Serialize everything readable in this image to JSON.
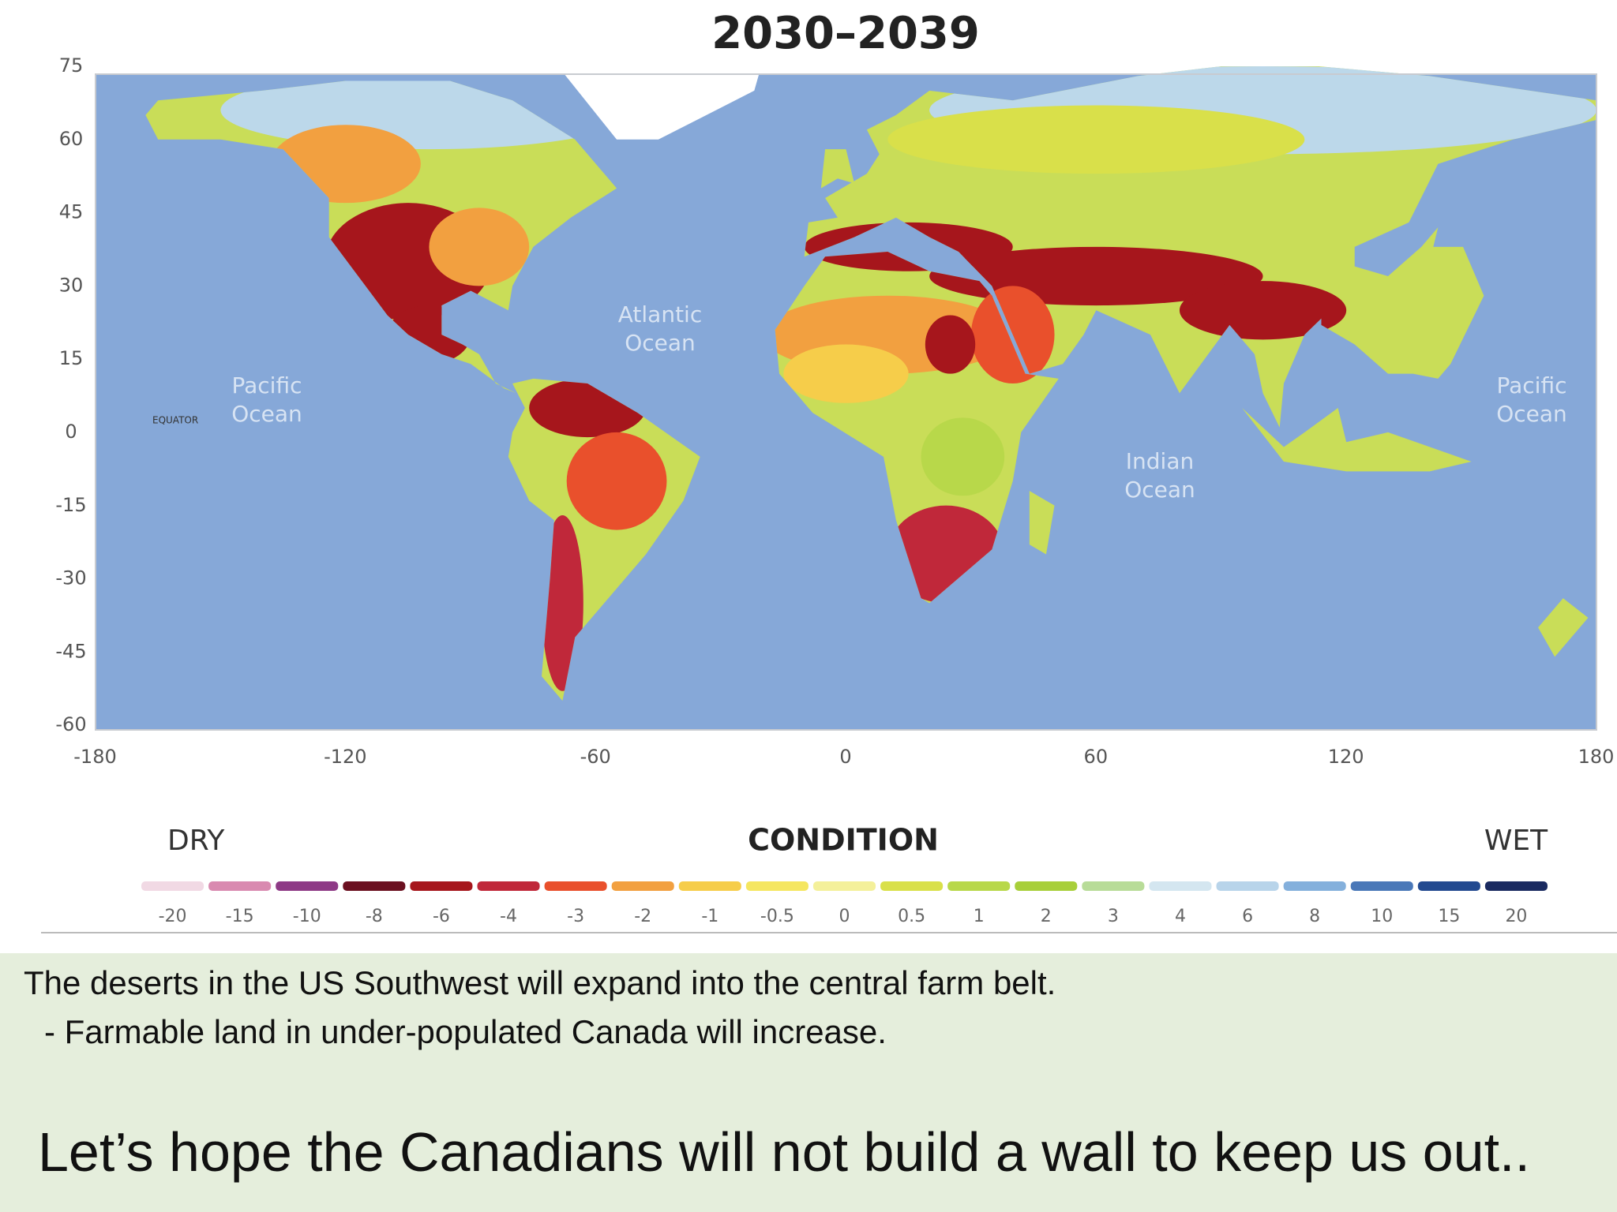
{
  "title": "2030–2039",
  "y_axis_labels": [
    75,
    60,
    45,
    30,
    15,
    0,
    -15,
    -30,
    -45,
    -60
  ],
  "x_axis_labels": [
    -180,
    -120,
    -60,
    0,
    60,
    120,
    180
  ],
  "map_labels": {
    "equator": "EQUATOR",
    "pacific_ocean_west": [
      "Pacific",
      "Ocean"
    ],
    "atlantic_ocean": [
      "Atlantic",
      "Ocean"
    ],
    "indian_ocean": [
      "Indian",
      "Ocean"
    ],
    "pacific_ocean_east": [
      "Pacific",
      "Ocean"
    ]
  },
  "legend": {
    "dry": "DRY",
    "title": "CONDITION",
    "wet": "WET",
    "values": [
      -20,
      -15,
      -10,
      -8,
      -6,
      -4,
      -3,
      -2,
      -1,
      -0.5,
      0,
      0.5,
      1,
      2,
      3,
      4,
      6,
      8,
      10,
      15,
      20
    ],
    "colors": [
      "#f1d9e4",
      "#d98ab0",
      "#8e3a86",
      "#6b1020",
      "#a6161c",
      "#c0283a",
      "#e9502c",
      "#f2a040",
      "#f6cd4a",
      "#f5e660",
      "#f4f09a",
      "#d9e04a",
      "#b8d84a",
      "#a8cf3a",
      "#b8dc98",
      "#d4e6f0",
      "#b8d4ea",
      "#84b0dc",
      "#4a78b8",
      "#234a90",
      "#1a2a60"
    ]
  },
  "caption": {
    "lines": [
      "The deserts in the US Southwest will expand into the central farm belt.",
      "- Farmable land in under-populated Canada will increase."
    ],
    "closing": "Let’s hope the Canadians will not build a wall to keep us out.."
  }
}
